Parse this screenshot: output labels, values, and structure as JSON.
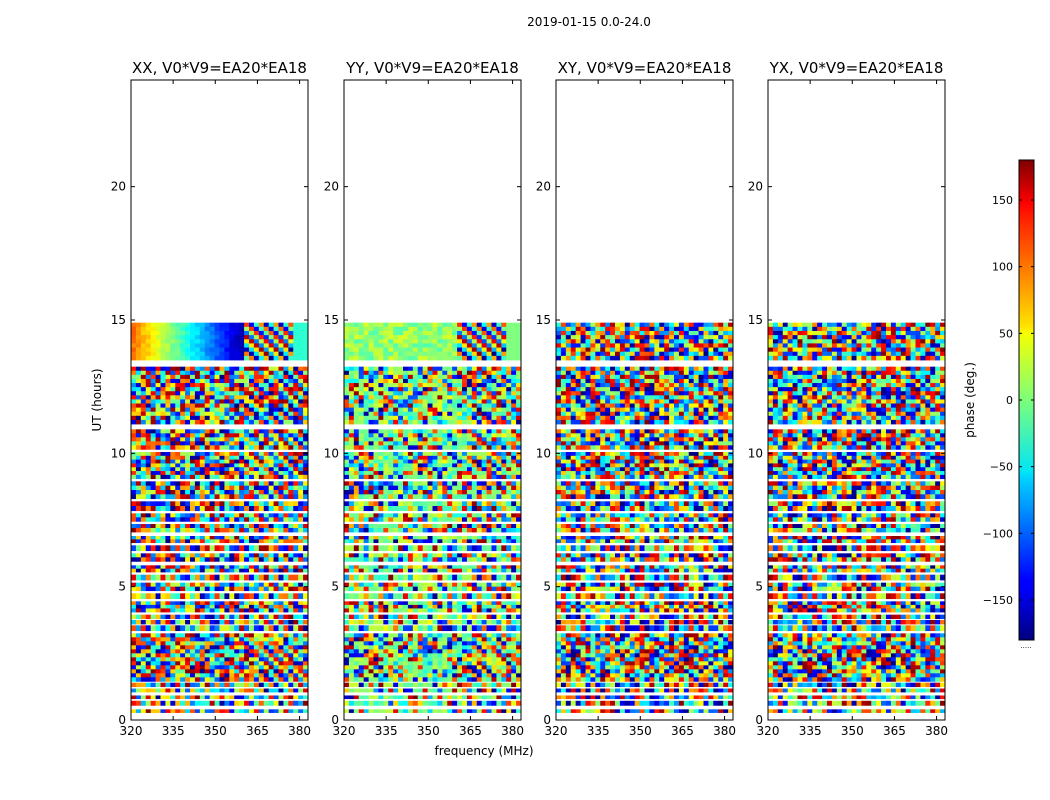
{
  "chart_data": {
    "type": "heatmap",
    "suptitle": "2019-01-15 0.0-24.0",
    "xlabel": "frequency (MHz)",
    "ylabel": "UT (hours)",
    "xlim": [
      320,
      383
    ],
    "ylim": [
      0,
      24
    ],
    "xticks": [
      320,
      335,
      350,
      365,
      380
    ],
    "yticks": [
      0,
      5,
      10,
      15,
      20
    ],
    "colorbar": {
      "label": "phase (deg.)",
      "range": [
        -180,
        180
      ],
      "ticks": [
        -150,
        -100,
        -50,
        0,
        50,
        100,
        150
      ],
      "tick_labels": [
        "−150",
        "−100",
        "−50",
        "0",
        "50",
        "100",
        "150"
      ],
      "colormap": "jet",
      "under_label": "....."
    },
    "data_time_range_hours": [
      0.0,
      14.9
    ],
    "data_bands": [
      [
        0.28,
        0.4
      ],
      [
        0.55,
        0.72
      ],
      [
        0.8,
        0.92
      ],
      [
        1.05,
        1.18
      ],
      [
        1.25,
        1.4
      ],
      [
        1.45,
        3.25
      ],
      [
        3.35,
        3.55
      ],
      [
        3.6,
        3.75
      ],
      [
        3.8,
        3.95
      ],
      [
        4.05,
        4.45
      ],
      [
        4.55,
        4.75
      ],
      [
        4.85,
        5.15
      ],
      [
        5.25,
        5.45
      ],
      [
        5.55,
        5.8
      ],
      [
        5.95,
        6.25
      ],
      [
        6.35,
        6.55
      ],
      [
        6.65,
        6.9
      ],
      [
        7.05,
        7.35
      ],
      [
        7.45,
        7.75
      ],
      [
        7.85,
        8.2
      ],
      [
        8.3,
        8.95
      ],
      [
        9.05,
        10.05
      ],
      [
        10.15,
        10.9
      ],
      [
        11.1,
        13.25
      ],
      [
        13.5,
        14.9
      ]
    ],
    "panels": [
      {
        "title": "XX, V0*V9=EA20*EA18",
        "pattern": "coherent-phase-gradient"
      },
      {
        "title": "YY, V0*V9=EA20*EA18",
        "pattern": "near-zero-phase"
      },
      {
        "title": "XY, V0*V9=EA20*EA18",
        "pattern": "noise"
      },
      {
        "title": "YX, V0*V9=EA20*EA18",
        "pattern": "noise"
      }
    ]
  }
}
